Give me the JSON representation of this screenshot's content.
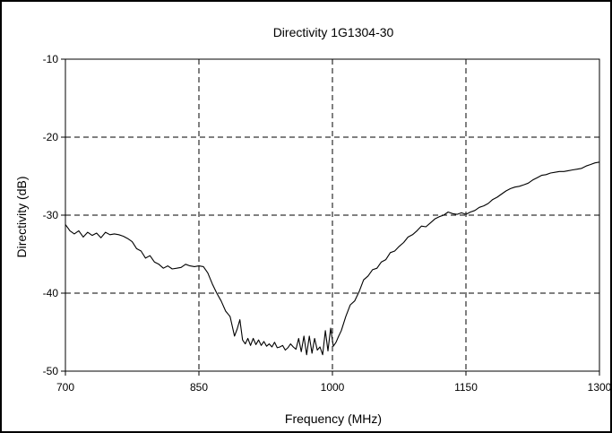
{
  "chart_data": {
    "type": "line",
    "title": "Directivity 1G1304-30",
    "xlabel": "Frequency (MHz)",
    "ylabel": "Directivity (dB)",
    "xlim": [
      700,
      1300
    ],
    "ylim": [
      -50,
      -10
    ],
    "xticks": [
      700,
      850,
      1000,
      1150,
      1300
    ],
    "xtick_labels": [
      "700",
      "850",
      "1000",
      "1150",
      "1300"
    ],
    "yticks": [
      -50,
      -40,
      -30,
      -20,
      -10
    ],
    "ytick_labels": [
      "-50",
      "-40",
      "-30",
      "-20",
      "-10"
    ],
    "grid": true,
    "legend": "none",
    "series": [
      {
        "color": "#000000",
        "x": [
          700,
          705,
          710,
          715,
          720,
          725,
          730,
          735,
          740,
          745,
          750,
          755,
          760,
          765,
          770,
          775,
          780,
          785,
          790,
          795,
          800,
          805,
          810,
          815,
          820,
          825,
          830,
          835,
          840,
          845,
          850,
          855,
          860,
          865,
          870,
          875,
          880,
          885,
          890,
          893,
          896,
          899,
          902,
          905,
          908,
          911,
          914,
          917,
          920,
          923,
          926,
          929,
          932,
          935,
          938,
          941,
          944,
          947,
          950,
          953,
          956,
          959,
          962,
          965,
          968,
          971,
          974,
          977,
          980,
          983,
          986,
          989,
          992,
          995,
          998,
          1001,
          1004,
          1007,
          1010,
          1015,
          1020,
          1025,
          1030,
          1035,
          1040,
          1045,
          1050,
          1055,
          1060,
          1065,
          1070,
          1075,
          1080,
          1085,
          1090,
          1095,
          1100,
          1105,
          1110,
          1115,
          1120,
          1125,
          1130,
          1135,
          1140,
          1145,
          1150,
          1155,
          1160,
          1165,
          1170,
          1175,
          1180,
          1185,
          1190,
          1195,
          1200,
          1205,
          1210,
          1215,
          1220,
          1225,
          1230,
          1235,
          1240,
          1245,
          1250,
          1255,
          1260,
          1265,
          1270,
          1275,
          1280,
          1285,
          1290,
          1295,
          1300
        ],
        "y": [
          -31.2,
          -32.0,
          -32.4,
          -32.0,
          -32.8,
          -32.2,
          -32.6,
          -32.3,
          -32.9,
          -32.2,
          -32.5,
          -32.4,
          -32.5,
          -32.7,
          -33.0,
          -33.4,
          -34.3,
          -34.6,
          -35.5,
          -35.2,
          -36.0,
          -36.3,
          -36.8,
          -36.5,
          -36.9,
          -36.8,
          -36.7,
          -36.3,
          -36.5,
          -36.6,
          -36.5,
          -36.6,
          -37.4,
          -38.8,
          -40.0,
          -41.0,
          -42.3,
          -43.0,
          -45.5,
          -44.6,
          -43.4,
          -46.0,
          -46.5,
          -45.8,
          -46.7,
          -45.8,
          -46.6,
          -46.0,
          -46.7,
          -46.2,
          -46.8,
          -46.5,
          -46.9,
          -46.3,
          -47.0,
          -46.9,
          -46.7,
          -47.3,
          -47.0,
          -46.5,
          -46.9,
          -47.2,
          -45.8,
          -47.5,
          -45.5,
          -47.9,
          -45.5,
          -47.7,
          -45.8,
          -47.3,
          -46.9,
          -47.9,
          -44.8,
          -47.4,
          -44.5,
          -46.8,
          -46.3,
          -45.5,
          -44.8,
          -43.0,
          -41.5,
          -41.0,
          -39.8,
          -38.3,
          -37.8,
          -37.0,
          -36.8,
          -36.0,
          -35.7,
          -34.8,
          -34.6,
          -34.0,
          -33.5,
          -32.8,
          -32.5,
          -32.0,
          -31.4,
          -31.5,
          -31.0,
          -30.5,
          -30.2,
          -30.0,
          -29.6,
          -29.8,
          -29.9,
          -29.7,
          -29.9,
          -29.6,
          -29.4,
          -29.0,
          -28.8,
          -28.5,
          -28.0,
          -27.7,
          -27.3,
          -26.9,
          -26.6,
          -26.4,
          -26.3,
          -26.1,
          -25.9,
          -25.5,
          -25.2,
          -24.9,
          -24.8,
          -24.6,
          -24.5,
          -24.4,
          -24.4,
          -24.3,
          -24.2,
          -24.1,
          -24.0,
          -23.7,
          -23.5,
          -23.3,
          -23.2
        ]
      }
    ]
  }
}
